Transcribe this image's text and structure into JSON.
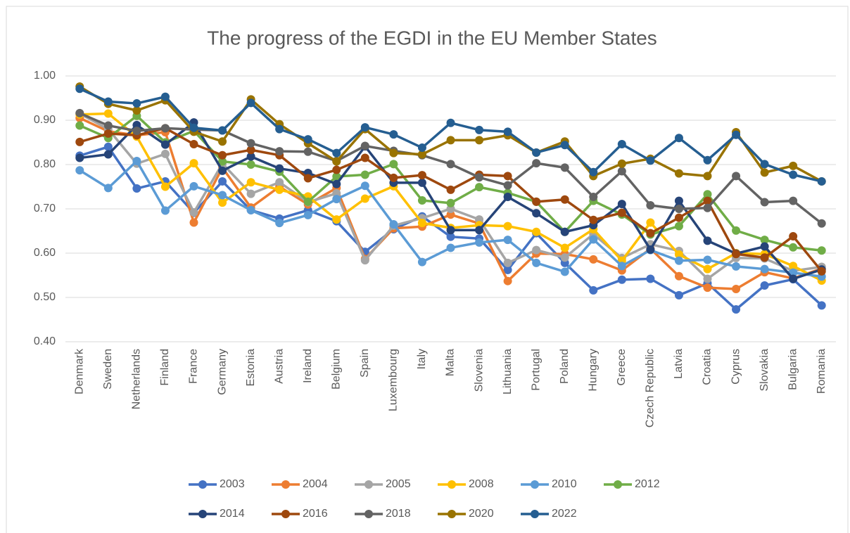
{
  "chart_data": {
    "type": "line",
    "title": "The progress of the EGDI in the EU Member States",
    "categories": [
      "Denmark",
      "Sweden",
      "Netherlands",
      "Finland",
      "France",
      "Germany",
      "Estonia",
      "Austria",
      "Ireland",
      "Belgium",
      "Spain",
      "Luxembourg",
      "Italy",
      "Malta",
      "Slovenia",
      "Lithuania",
      "Portugal",
      "Poland",
      "Hungary",
      "Greece",
      "Czech Republic",
      "Latvia",
      "Croatia",
      "Cyprus",
      "Slovakia",
      "Bulgaria",
      "Romania"
    ],
    "series": [
      {
        "name": "2003",
        "color": "#4472c4",
        "values": [
          0.82,
          0.84,
          0.746,
          0.762,
          0.691,
          0.762,
          0.697,
          0.678,
          0.697,
          0.672,
          0.603,
          0.654,
          0.683,
          0.637,
          0.633,
          0.562,
          0.645,
          0.578,
          0.516,
          0.54,
          0.542,
          0.505,
          0.532,
          0.473,
          0.527,
          0.541,
          0.482
        ]
      },
      {
        "name": "2004",
        "color": "#ed7d31",
        "values": [
          0.905,
          0.875,
          0.866,
          0.873,
          0.669,
          0.793,
          0.703,
          0.75,
          0.71,
          0.747,
          0.587,
          0.656,
          0.66,
          0.687,
          0.667,
          0.537,
          0.599,
          0.598,
          0.586,
          0.561,
          0.61,
          0.548,
          0.522,
          0.519,
          0.557,
          0.543,
          0.565
        ]
      },
      {
        "name": "2005",
        "color": "#a5a5a5",
        "values": [
          0.915,
          0.88,
          0.802,
          0.824,
          0.692,
          0.802,
          0.734,
          0.76,
          0.715,
          0.735,
          0.584,
          0.662,
          0.679,
          0.7,
          0.676,
          0.578,
          0.607,
          0.59,
          0.643,
          0.589,
          0.62,
          0.605,
          0.542,
          0.589,
          0.588,
          0.56,
          0.569
        ]
      },
      {
        "name": "2008",
        "color": "#ffc000",
        "values": [
          0.913,
          0.915,
          0.863,
          0.75,
          0.803,
          0.714,
          0.76,
          0.743,
          0.728,
          0.676,
          0.723,
          0.751,
          0.668,
          0.657,
          0.663,
          0.661,
          0.648,
          0.612,
          0.654,
          0.583,
          0.669,
          0.597,
          0.564,
          0.6,
          0.598,
          0.571,
          0.538
        ]
      },
      {
        "name": "2010",
        "color": "#5b9bd5",
        "values": [
          0.787,
          0.747,
          0.808,
          0.696,
          0.751,
          0.731,
          0.697,
          0.668,
          0.686,
          0.722,
          0.752,
          0.665,
          0.58,
          0.612,
          0.624,
          0.63,
          0.578,
          0.558,
          0.631,
          0.571,
          0.607,
          0.583,
          0.585,
          0.57,
          0.564,
          0.556,
          0.547
        ]
      },
      {
        "name": "2012",
        "color": "#70ad47",
        "values": [
          0.888,
          0.86,
          0.91,
          0.85,
          0.876,
          0.807,
          0.8,
          0.784,
          0.716,
          0.773,
          0.777,
          0.801,
          0.719,
          0.713,
          0.749,
          0.736,
          0.716,
          0.648,
          0.718,
          0.687,
          0.642,
          0.661,
          0.733,
          0.651,
          0.63,
          0.613,
          0.606
        ]
      },
      {
        "name": "2014",
        "color": "#264478",
        "values": [
          0.815,
          0.823,
          0.889,
          0.845,
          0.895,
          0.786,
          0.818,
          0.791,
          0.781,
          0.756,
          0.841,
          0.759,
          0.759,
          0.652,
          0.652,
          0.727,
          0.69,
          0.648,
          0.663,
          0.711,
          0.608,
          0.718,
          0.628,
          0.599,
          0.615,
          0.542,
          0.563
        ]
      },
      {
        "name": "2016",
        "color": "#9e480e",
        "values": [
          0.851,
          0.87,
          0.866,
          0.882,
          0.846,
          0.821,
          0.833,
          0.821,
          0.769,
          0.788,
          0.815,
          0.77,
          0.776,
          0.743,
          0.777,
          0.774,
          0.716,
          0.721,
          0.675,
          0.691,
          0.645,
          0.68,
          0.718,
          0.598,
          0.59,
          0.638,
          0.559
        ]
      },
      {
        "name": "2018",
        "color": "#636363",
        "values": [
          0.916,
          0.888,
          0.876,
          0.882,
          0.879,
          0.877,
          0.848,
          0.83,
          0.829,
          0.808,
          0.842,
          0.831,
          0.821,
          0.801,
          0.771,
          0.753,
          0.803,
          0.793,
          0.727,
          0.785,
          0.708,
          0.7,
          0.702,
          0.774,
          0.715,
          0.718,
          0.667
        ]
      },
      {
        "name": "2020",
        "color": "#997300",
        "values": [
          0.976,
          0.937,
          0.922,
          0.945,
          0.874,
          0.852,
          0.947,
          0.891,
          0.848,
          0.807,
          0.88,
          0.826,
          0.823,
          0.855,
          0.855,
          0.866,
          0.827,
          0.852,
          0.774,
          0.802,
          0.813,
          0.78,
          0.774,
          0.873,
          0.782,
          0.797,
          0.762
        ]
      },
      {
        "name": "2022",
        "color": "#255e91",
        "values": [
          0.971,
          0.942,
          0.938,
          0.953,
          0.883,
          0.877,
          0.939,
          0.88,
          0.857,
          0.826,
          0.884,
          0.868,
          0.838,
          0.894,
          0.878,
          0.874,
          0.827,
          0.844,
          0.783,
          0.846,
          0.809,
          0.86,
          0.81,
          0.867,
          0.801,
          0.777,
          0.762
        ]
      }
    ],
    "ylim": [
      0.4,
      1.0
    ],
    "yticks": [
      {
        "value": 0.4,
        "label": "0.40"
      },
      {
        "value": 0.5,
        "label": "0.50"
      },
      {
        "value": 0.6,
        "label": "0.60"
      },
      {
        "value": 0.7,
        "label": "0.70"
      },
      {
        "value": 0.8,
        "label": "0.80"
      },
      {
        "value": 0.9,
        "label": "0.90"
      },
      {
        "value": 1.0,
        "label": "1.00"
      }
    ],
    "grid": true,
    "legend": "bottom"
  }
}
